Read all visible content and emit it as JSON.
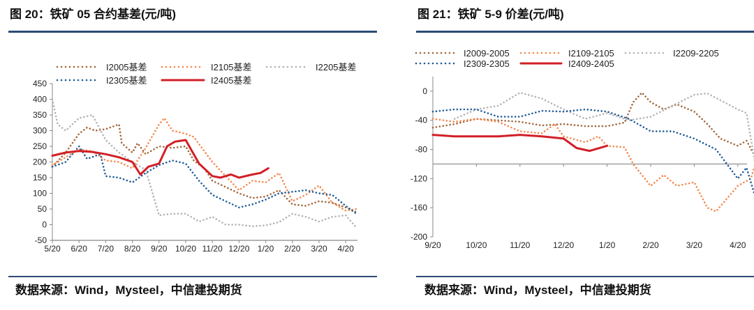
{
  "chart_data": [
    {
      "type": "line",
      "title": "图 20：铁矿 05 合约基差(元/吨)",
      "xlabel": "",
      "ylabel": "",
      "ylim": [
        -50,
        450
      ],
      "yticks": [
        "450",
        "400",
        "350",
        "300",
        "250",
        "200",
        "150",
        "100",
        "50",
        "0",
        "-50"
      ],
      "xticks": [
        "5/20",
        "6/20",
        "7/20",
        "8/20",
        "9/20",
        "10/20",
        "11/20",
        "12/20",
        "1/20",
        "2/20",
        "3/20",
        "4/20"
      ],
      "legend_position": "top",
      "grid": false,
      "series": [
        {
          "name": "I2005基差",
          "color": "#a0663a",
          "style": "dotted",
          "points": [
            [
              0,
              185
            ],
            [
              0.5,
              230
            ],
            [
              1,
              290
            ],
            [
              1.3,
              310
            ],
            [
              1.6,
              300
            ],
            [
              2,
              305
            ],
            [
              2.5,
              320
            ],
            [
              2.6,
              260
            ],
            [
              3,
              230
            ],
            [
              3.2,
              260
            ],
            [
              3.5,
              225
            ],
            [
              4,
              250
            ],
            [
              4.5,
              245
            ],
            [
              5,
              250
            ],
            [
              5.3,
              205
            ],
            [
              5.7,
              180
            ],
            [
              6,
              140
            ],
            [
              6.5,
              120
            ],
            [
              7,
              100
            ],
            [
              7.5,
              85
            ],
            [
              8,
              90
            ],
            [
              8.5,
              110
            ],
            [
              9,
              65
            ],
            [
              9.5,
              60
            ],
            [
              10,
              75
            ],
            [
              10.5,
              70
            ],
            [
              11,
              55
            ],
            [
              11.4,
              40
            ]
          ]
        },
        {
          "name": "I2105基差",
          "color": "#f4874b",
          "style": "dotted",
          "points": [
            [
              0,
              190
            ],
            [
              0.5,
              215
            ],
            [
              1,
              240
            ],
            [
              1.5,
              235
            ],
            [
              2,
              205
            ],
            [
              2.5,
              200
            ],
            [
              3,
              180
            ],
            [
              3.5,
              245
            ],
            [
              4,
              320
            ],
            [
              4.2,
              340
            ],
            [
              4.5,
              300
            ],
            [
              5,
              290
            ],
            [
              5.3,
              280
            ],
            [
              6,
              200
            ],
            [
              6.5,
              155
            ],
            [
              7,
              110
            ],
            [
              7.5,
              140
            ],
            [
              8,
              135
            ],
            [
              8.5,
              165
            ],
            [
              9,
              75
            ],
            [
              9.5,
              95
            ],
            [
              10,
              125
            ],
            [
              10.5,
              70
            ],
            [
              11,
              45
            ],
            [
              11.4,
              50
            ]
          ]
        },
        {
          "name": "I2205基差",
          "color": "#b3b3b3",
          "style": "dotted",
          "points": [
            [
              0,
              400
            ],
            [
              0.2,
              320
            ],
            [
              0.5,
              300
            ],
            [
              1,
              340
            ],
            [
              1.5,
              350
            ],
            [
              2,
              270
            ],
            [
              2.5,
              230
            ],
            [
              3,
              200
            ],
            [
              3.5,
              175
            ],
            [
              4,
              30
            ],
            [
              4.5,
              35
            ],
            [
              5,
              35
            ],
            [
              5.5,
              10
            ],
            [
              6,
              25
            ],
            [
              6.5,
              0
            ],
            [
              7,
              0
            ],
            [
              7.5,
              -5
            ],
            [
              8,
              -2
            ],
            [
              8.5,
              8
            ],
            [
              9,
              35
            ],
            [
              9.5,
              25
            ],
            [
              10,
              10
            ],
            [
              10.5,
              25
            ],
            [
              11,
              30
            ],
            [
              11.4,
              -10
            ]
          ]
        },
        {
          "name": "I2305基差",
          "color": "#1f5c99",
          "style": "dotted",
          "points": [
            [
              0,
              185
            ],
            [
              0.5,
              200
            ],
            [
              1,
              250
            ],
            [
              1.3,
              210
            ],
            [
              1.8,
              225
            ],
            [
              2,
              155
            ],
            [
              2.5,
              150
            ],
            [
              3,
              135
            ],
            [
              3.5,
              165
            ],
            [
              4,
              190
            ],
            [
              4.5,
              205
            ],
            [
              5,
              195
            ],
            [
              5.5,
              140
            ],
            [
              6,
              95
            ],
            [
              6.5,
              75
            ],
            [
              7,
              55
            ],
            [
              7.5,
              65
            ],
            [
              8,
              80
            ],
            [
              8.5,
              100
            ],
            [
              9,
              105
            ],
            [
              9.5,
              110
            ],
            [
              10,
              100
            ],
            [
              10.5,
              95
            ],
            [
              11,
              60
            ],
            [
              11.4,
              35
            ]
          ]
        },
        {
          "name": "I2405基差",
          "color": "#d21f26",
          "style": "solid",
          "points": [
            [
              0,
              220
            ],
            [
              0.5,
              230
            ],
            [
              1,
              235
            ],
            [
              1.5,
              232
            ],
            [
              2,
              225
            ],
            [
              2.5,
              215
            ],
            [
              3,
              200
            ],
            [
              3.3,
              160
            ],
            [
              3.6,
              185
            ],
            [
              4,
              195
            ],
            [
              4.3,
              250
            ],
            [
              4.6,
              265
            ],
            [
              5,
              270
            ],
            [
              5.2,
              240
            ],
            [
              5.5,
              195
            ],
            [
              6,
              155
            ],
            [
              6.3,
              150
            ],
            [
              6.7,
              160
            ],
            [
              7,
              150
            ],
            [
              7.5,
              160
            ],
            [
              7.8,
              165
            ],
            [
              8,
              175
            ],
            [
              8.1,
              180
            ]
          ]
        }
      ]
    },
    {
      "type": "line",
      "title": "图 21：铁矿 5-9 价差(元/吨)",
      "xlabel": "",
      "ylabel": "",
      "ylim": [
        -200,
        20
      ],
      "x_axis_crosses": -100,
      "yticks": [
        "0",
        "-40",
        "-80",
        "-120",
        "-160",
        "-200"
      ],
      "xticks": [
        "9/20",
        "10/20",
        "11/20",
        "12/20",
        "1/20",
        "2/20",
        "3/20",
        "4/20"
      ],
      "legend_position": "top",
      "grid": false,
      "series": [
        {
          "name": "I2009-2005",
          "color": "#a0663a",
          "style": "dotted",
          "points": [
            [
              0,
              -50
            ],
            [
              0.5,
              -45
            ],
            [
              1,
              -38
            ],
            [
              1.5,
              -40
            ],
            [
              2,
              -42
            ],
            [
              2.5,
              -47
            ],
            [
              3,
              -45
            ],
            [
              3.5,
              -48
            ],
            [
              4,
              -48
            ],
            [
              4.4,
              -43
            ],
            [
              4.6,
              -15
            ],
            [
              4.8,
              -2
            ],
            [
              5,
              -15
            ],
            [
              5.3,
              -25
            ],
            [
              5.6,
              -18
            ],
            [
              6,
              -28
            ],
            [
              6.3,
              -45
            ],
            [
              6.6,
              -65
            ],
            [
              7,
              -75
            ],
            [
              7.2,
              -68
            ],
            [
              7.4,
              -90
            ]
          ]
        },
        {
          "name": "I2109-2105",
          "color": "#f4874b",
          "style": "dotted",
          "points": [
            [
              0,
              -38
            ],
            [
              0.5,
              -42
            ],
            [
              1,
              -38
            ],
            [
              1.5,
              -42
            ],
            [
              2,
              -55
            ],
            [
              2.5,
              -58
            ],
            [
              2.8,
              -45
            ],
            [
              3,
              -62
            ],
            [
              3.5,
              -70
            ],
            [
              3.8,
              -62
            ],
            [
              4,
              -75
            ],
            [
              4.4,
              -77
            ],
            [
              4.6,
              -100
            ],
            [
              5,
              -130
            ],
            [
              5.3,
              -115
            ],
            [
              5.6,
              -130
            ],
            [
              6,
              -125
            ],
            [
              6.3,
              -160
            ],
            [
              6.5,
              -165
            ],
            [
              7,
              -130
            ],
            [
              7.3,
              -120
            ],
            [
              7.4,
              -100
            ]
          ]
        },
        {
          "name": "I2209-2205",
          "color": "#b3b3b3",
          "style": "dotted",
          "points": [
            [
              0.5,
              -38
            ],
            [
              1,
              -25
            ],
            [
              1.5,
              -20
            ],
            [
              2,
              -2
            ],
            [
              2.5,
              -10
            ],
            [
              3,
              -25
            ],
            [
              3.5,
              -38
            ],
            [
              4,
              -30
            ],
            [
              4.5,
              -40
            ],
            [
              5,
              -35
            ],
            [
              5.5,
              -20
            ],
            [
              6,
              -5
            ],
            [
              6.3,
              -3
            ],
            [
              7,
              -25
            ],
            [
              7.2,
              -30
            ],
            [
              7.4,
              -100
            ]
          ]
        },
        {
          "name": "I2309-2305",
          "color": "#1f5c99",
          "style": "dotted",
          "points": [
            [
              0,
              -28
            ],
            [
              0.5,
              -25
            ],
            [
              1,
              -25
            ],
            [
              1.5,
              -35
            ],
            [
              2,
              -35
            ],
            [
              2.5,
              -27
            ],
            [
              3,
              -28
            ],
            [
              3.5,
              -25
            ],
            [
              4,
              -28
            ],
            [
              4.5,
              -38
            ],
            [
              5,
              -55
            ],
            [
              5.5,
              -55
            ],
            [
              6,
              -65
            ],
            [
              6.5,
              -80
            ],
            [
              7,
              -120
            ],
            [
              7.2,
              -105
            ],
            [
              7.4,
              -145
            ]
          ]
        },
        {
          "name": "I2409-2405",
          "color": "#d21f26",
          "style": "solid",
          "points": [
            [
              0,
              -60
            ],
            [
              0.5,
              -62
            ],
            [
              1,
              -62
            ],
            [
              1.5,
              -62
            ],
            [
              2,
              -60
            ],
            [
              2.5,
              -62
            ],
            [
              3,
              -65
            ],
            [
              3.3,
              -78
            ],
            [
              3.6,
              -82
            ],
            [
              4,
              -75
            ]
          ]
        }
      ]
    }
  ],
  "sources": [
    "数据来源：Wind，Mysteel，中信建投期货",
    "数据来源：Wind，Mysteel，中信建投期货"
  ]
}
